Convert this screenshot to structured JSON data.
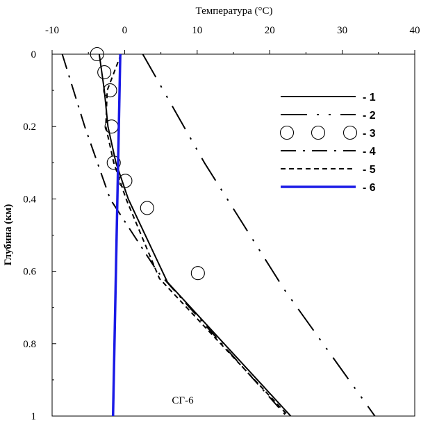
{
  "chart_data": {
    "type": "line",
    "xlabel": "Температура (°C)",
    "ylabel": "Глубина (км)",
    "annotation": "СГ-6",
    "xlim": [
      -10,
      40
    ],
    "ylim": [
      0,
      1
    ],
    "y_inverted": true,
    "x_axis_position": "top",
    "x_ticks": [
      -10,
      0,
      10,
      20,
      30,
      40
    ],
    "x_tick_labels": [
      "-10",
      "0",
      "10",
      "20",
      "30",
      "40"
    ],
    "y_ticks": [
      0,
      0.2,
      0.4,
      0.6,
      0.8,
      1
    ],
    "y_tick_labels": [
      "0",
      "0.2",
      "0.4",
      "0.6",
      "0.8",
      "1"
    ],
    "grid": false,
    "legend_position": "top-right",
    "series": [
      {
        "name": "- 1",
        "style": "solid",
        "color": "#000000",
        "x": [
          -3.5,
          -2.8,
          -2.3,
          -1.2,
          0.5,
          5.9,
          22.9
        ],
        "y": [
          0,
          0.1,
          0.2,
          0.3,
          0.4,
          0.63,
          1
        ]
      },
      {
        "name": "- 2",
        "style": "long-dash-dot-dot",
        "color": "#000000",
        "x": [
          2.5,
          11,
          22,
          34.5
        ],
        "y": [
          0,
          0.3,
          0.65,
          1
        ]
      },
      {
        "name": "- 3",
        "style": "markers",
        "color": "#000000",
        "x": [
          -3.8,
          -2.8,
          -2.0,
          -1.8,
          -1.5,
          0.1,
          3.1,
          10.1
        ],
        "y": [
          0,
          0.05,
          0.1,
          0.2,
          0.3,
          0.35,
          0.425,
          0.605
        ]
      },
      {
        "name": "- 4",
        "style": "dash-dot",
        "color": "#000000",
        "x": [
          -8.6,
          -5.5,
          -2.0,
          4.5,
          22.3
        ],
        "y": [
          0,
          0.2,
          0.4,
          0.6,
          1
        ]
      },
      {
        "name": "- 5",
        "style": "dashed",
        "color": "#000000",
        "x": [
          -0.5,
          -2.4,
          -2.6,
          -1.5,
          0.2,
          4.8,
          22.6
        ],
        "y": [
          0,
          0.1,
          0.2,
          0.3,
          0.4,
          0.62,
          1
        ]
      },
      {
        "name": "- 6",
        "style": "solid-thick",
        "color": "#1a1ae6",
        "x": [
          -0.6,
          -1.6
        ],
        "y": [
          0,
          1
        ]
      }
    ]
  }
}
